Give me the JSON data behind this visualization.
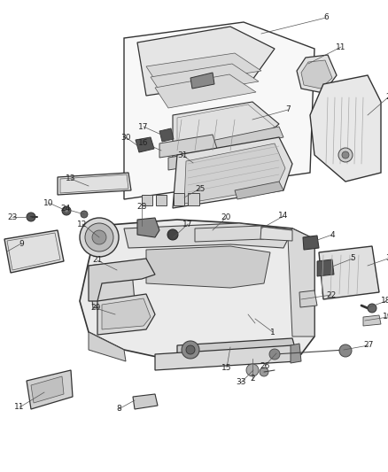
{
  "background_color": "#ffffff",
  "figsize": [
    4.38,
    5.33
  ],
  "dpi": 100,
  "line_color": "#333333",
  "text_color": "#222222",
  "part_fontsize": 6.5,
  "label_fontsize": 6.5
}
